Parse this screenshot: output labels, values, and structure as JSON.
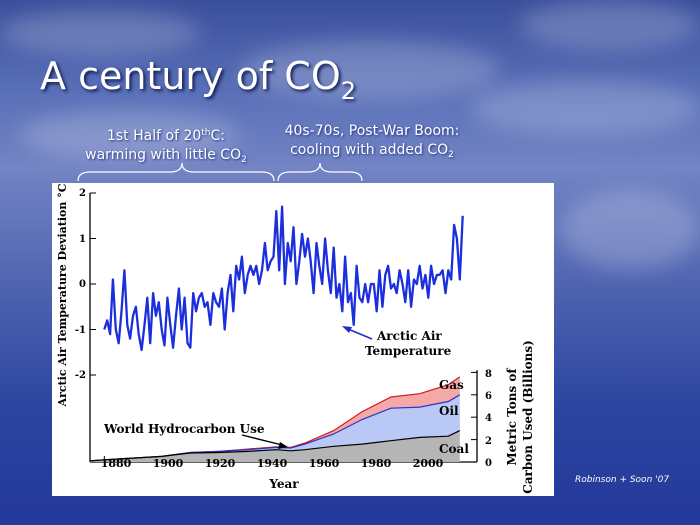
{
  "slide": {
    "title_main": "A century of CO",
    "title_sub": "2",
    "note_left": {
      "line1_a": "1st Half of 20",
      "line1_sup": "th",
      "line1_b": "C:",
      "line2_a": "warming with little CO",
      "line2_sub": "2"
    },
    "note_right": {
      "line1": "40s-70s, Post-War Boom:",
      "line2_a": "cooling with added CO",
      "line2_sub": "2"
    },
    "credit": "Robinson + Soon '07",
    "background_color": "#3a55a8"
  },
  "chart_data": {
    "type": "line",
    "xlabel": "Year",
    "ylabel_left": "Arctic Air Temperature Deviation °C",
    "ylabel_right_line1": "Metric Tons of",
    "ylabel_right_line2": "Carbon Used (Billions)",
    "x_ticks": [
      "1880",
      "1900",
      "1920",
      "1940",
      "1960",
      "1980",
      "2000"
    ],
    "temp_ticks": [
      "2",
      "1",
      "0",
      "-1",
      "-2"
    ],
    "carbon_ticks": [
      "8",
      "6",
      "4",
      "2",
      "0"
    ],
    "xlim": [
      1875,
      2010
    ],
    "temp_ylim": [
      -2,
      2
    ],
    "carbon_ylim": [
      0,
      8
    ],
    "annotations": {
      "arctic_line1": "Arctic Air",
      "arctic_line2": "Temperature",
      "hydrocarbon": "World Hydrocarbon Use",
      "gas": "Gas",
      "oil": "Oil",
      "coal": "Coal"
    },
    "arctic_temperature": {
      "x": [
        1880,
        1881,
        1882,
        1883,
        1884,
        1885,
        1886,
        1887,
        1888,
        1889,
        1890,
        1891,
        1892,
        1893,
        1894,
        1895,
        1896,
        1897,
        1898,
        1899,
        1900,
        1901,
        1902,
        1903,
        1904,
        1905,
        1906,
        1907,
        1908,
        1909,
        1910,
        1911,
        1912,
        1913,
        1914,
        1915,
        1916,
        1917,
        1918,
        1919,
        1920,
        1921,
        1922,
        1923,
        1924,
        1925,
        1926,
        1927,
        1928,
        1929,
        1930,
        1931,
        1932,
        1933,
        1934,
        1935,
        1936,
        1937,
        1938,
        1939,
        1940,
        1941,
        1942,
        1943,
        1944,
        1945,
        1946,
        1947,
        1948,
        1949,
        1950,
        1951,
        1952,
        1953,
        1954,
        1955,
        1956,
        1957,
        1958,
        1959,
        1960,
        1961,
        1962,
        1963,
        1964,
        1965,
        1966,
        1967,
        1968,
        1969,
        1970,
        1971,
        1972,
        1973,
        1974,
        1975,
        1976,
        1977,
        1978,
        1979,
        1980,
        1981,
        1982,
        1983,
        1984,
        1985,
        1986,
        1987,
        1988,
        1989,
        1990,
        1991,
        1992,
        1993,
        1994,
        1995,
        1996,
        1997,
        1998,
        1999,
        2000,
        2001,
        2002,
        2003,
        2004,
        2005
      ],
      "y": [
        -1.0,
        -0.8,
        -1.1,
        0.1,
        -1.0,
        -1.3,
        -0.6,
        0.3,
        -0.9,
        -1.2,
        -0.7,
        -0.5,
        -1.1,
        -1.45,
        -0.9,
        -0.3,
        -1.3,
        -0.2,
        -0.7,
        -0.4,
        -1.0,
        -1.35,
        -0.3,
        -0.9,
        -1.4,
        -0.7,
        -0.1,
        -1.0,
        -0.3,
        -1.3,
        -1.4,
        -0.2,
        -0.6,
        -0.3,
        -0.2,
        -0.5,
        -0.4,
        -0.9,
        -0.2,
        -0.4,
        -0.5,
        -0.1,
        -1.0,
        -0.2,
        0.2,
        -0.6,
        0.4,
        0.1,
        0.6,
        -0.2,
        0.2,
        0.4,
        0.2,
        0.4,
        0.0,
        0.3,
        0.9,
        0.3,
        0.5,
        0.6,
        1.6,
        0.3,
        1.7,
        0.0,
        0.9,
        0.5,
        1.25,
        0.0,
        0.5,
        1.1,
        0.6,
        1.0,
        0.5,
        -0.2,
        0.9,
        0.4,
        0.0,
        1.0,
        0.3,
        -0.2,
        0.8,
        -0.3,
        0.0,
        -0.6,
        0.6,
        -0.4,
        -0.2,
        -0.9,
        0.4,
        -0.3,
        -0.4,
        0.0,
        -0.4,
        0.0,
        0.0,
        -0.6,
        0.3,
        -0.5,
        0.2,
        0.4,
        -0.1,
        0.0,
        -0.2,
        0.3,
        0.0,
        -0.4,
        0.3,
        -0.5,
        0.1,
        0.0,
        0.4,
        -0.1,
        0.2,
        -0.3,
        0.4,
        0.0,
        0.2,
        0.2,
        0.3,
        -0.2,
        0.3,
        0.1,
        1.3,
        1.0,
        0.1,
        1.5
      ]
    },
    "hydrocarbon": {
      "x": [
        1875,
        1880,
        1890,
        1900,
        1910,
        1920,
        1930,
        1940,
        1945,
        1950,
        1960,
        1970,
        1980,
        1990,
        2000,
        2004
      ],
      "coal": [
        0.1,
        0.2,
        0.35,
        0.5,
        0.8,
        0.85,
        0.95,
        1.1,
        1.0,
        1.1,
        1.4,
        1.6,
        1.9,
        2.2,
        2.3,
        2.8
      ],
      "oil": [
        0.1,
        0.2,
        0.35,
        0.5,
        0.85,
        0.95,
        1.1,
        1.3,
        1.25,
        1.6,
        2.5,
        3.8,
        4.8,
        4.9,
        5.4,
        6.0
      ],
      "gas": [
        0.1,
        0.2,
        0.35,
        0.5,
        0.85,
        0.95,
        1.15,
        1.35,
        1.3,
        1.7,
        2.8,
        4.5,
        5.8,
        6.1,
        6.9,
        7.6
      ]
    }
  }
}
